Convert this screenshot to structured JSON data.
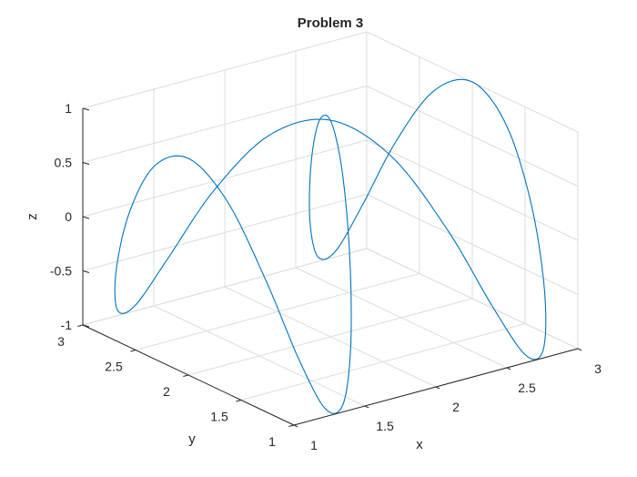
{
  "chart_data": {
    "type": "line",
    "title": "Problem 3",
    "xlabel": "x",
    "ylabel": "y",
    "zlabel": "z",
    "xlim": [
      1,
      3
    ],
    "ylim": [
      1,
      3
    ],
    "zlim": [
      -1,
      1
    ],
    "x_ticks": [
      "1",
      "1.5",
      "2",
      "2.5",
      "3"
    ],
    "y_ticks": [
      "1",
      "1.5",
      "2",
      "2.5",
      "3"
    ],
    "z_ticks": [
      "-1",
      "-0.5",
      "0",
      "0.5",
      "1"
    ],
    "grid": true,
    "view": "3d",
    "series": [
      {
        "color": "#0072BD",
        "x": [
          2.0,
          2.173,
          2.342,
          2.5,
          2.643,
          2.766,
          2.866,
          2.94,
          2.985,
          3.0,
          2.985,
          2.94,
          2.866,
          2.766,
          2.643,
          2.5,
          2.342,
          2.173,
          2.0,
          1.827,
          1.658,
          1.5,
          1.357,
          1.234,
          1.134,
          1.06,
          1.015,
          1.0,
          1.015,
          1.06,
          1.134,
          1.234,
          1.357,
          1.5,
          1.658,
          1.827,
          2.0
        ],
        "y": [
          2.0,
          2.342,
          2.643,
          2.866,
          2.985,
          2.985,
          2.866,
          2.643,
          2.342,
          2.0,
          1.658,
          1.357,
          1.134,
          1.015,
          1.015,
          1.134,
          1.357,
          1.658,
          2.0,
          2.342,
          2.643,
          2.866,
          2.985,
          2.985,
          2.866,
          2.643,
          2.342,
          2.0,
          1.658,
          1.357,
          1.134,
          1.015,
          1.015,
          1.134,
          1.357,
          1.658,
          2.0
        ],
        "z": [
          1.0,
          0.766,
          0.174,
          -0.5,
          -0.94,
          -0.94,
          -0.5,
          0.174,
          0.766,
          1.0,
          0.766,
          0.174,
          -0.5,
          -0.94,
          -0.94,
          -0.5,
          0.174,
          0.766,
          1.0,
          0.766,
          0.174,
          -0.5,
          -0.94,
          -0.94,
          -0.5,
          0.174,
          0.766,
          1.0,
          0.766,
          0.174,
          -0.5,
          -0.94,
          -0.94,
          -0.5,
          0.174,
          0.766,
          1.0
        ]
      }
    ]
  }
}
